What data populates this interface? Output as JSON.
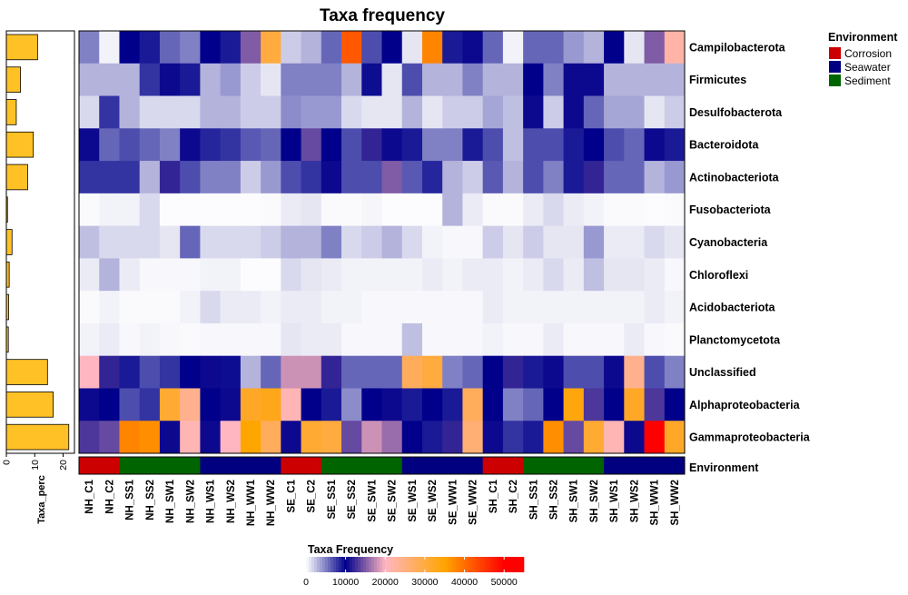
{
  "colors": {
    "corrosion": "#CC0000",
    "seawater": "#000080",
    "sediment": "#006400",
    "bar_fill": "#FFC125",
    "heat_scale": [
      "#FFFFFF",
      "#00008B",
      "#FFB6C1",
      "#FFA500",
      "#FF0000"
    ]
  },
  "chart_data": {
    "type": "heatmap",
    "title": "Taxa frequency",
    "rows": [
      "Campilobacterota",
      "Firmicutes",
      "Desulfobacterota",
      "Bacteroidota",
      "Actinobacteriota",
      "Fusobacteriota",
      "Cyanobacteria",
      "Chloroflexi",
      "Acidobacteriota",
      "Planctomycetota",
      "Unclassified",
      "Alphaproteobacteria",
      "Gammaproteobacteria"
    ],
    "columns": [
      "NH_C1",
      "NH_C2",
      "NH_SS1",
      "NH_SS2",
      "NH_SW1",
      "NH_SW2",
      "NH_WS1",
      "NH_WS2",
      "NH_WW1",
      "NH_WW2",
      "SE_C1",
      "SE_C2",
      "SE_SS1",
      "SE_SS2",
      "SE_SW1",
      "SE_SW2",
      "SE_WS1",
      "SE_WS2",
      "SE_WW1",
      "SE_WW2",
      "SH_C1",
      "SH_C2",
      "SH_SS1",
      "SH_SS2",
      "SH_SW1",
      "SH_SW2",
      "SH_WS1",
      "SH_WS2",
      "SH_WW1",
      "SH_WW2"
    ],
    "values": [
      [
        5000,
        500,
        10000,
        9000,
        6000,
        5000,
        10000,
        9000,
        15000,
        30000,
        2000,
        3000,
        6000,
        42000,
        7000,
        10000,
        1000,
        38000,
        9000,
        10500,
        6000,
        500,
        6000,
        6000,
        4000,
        3000,
        10000,
        1000,
        15000,
        22000
      ],
      [
        3000,
        3000,
        3000,
        8000,
        10500,
        9000,
        3000,
        4000,
        2000,
        1000,
        5000,
        5000,
        5000,
        3000,
        9500,
        1000,
        7000,
        3000,
        3000,
        5000,
        3000,
        3000,
        10000,
        5000,
        10500,
        10500,
        3000,
        3000,
        3000,
        3000
      ],
      [
        1500,
        8000,
        3000,
        1500,
        1500,
        1500,
        3000,
        3000,
        2000,
        2000,
        4500,
        4000,
        4000,
        1500,
        1000,
        1000,
        3000,
        1000,
        2000,
        2000,
        3500,
        2500,
        10500,
        2000,
        10500,
        6000,
        3500,
        3500,
        1000,
        2000
      ],
      [
        10500,
        6000,
        7000,
        6000,
        5000,
        10500,
        8500,
        8000,
        6500,
        6000,
        10000,
        14000,
        10000,
        7000,
        12000,
        10500,
        9000,
        5000,
        5000,
        9000,
        7000,
        2500,
        7000,
        7000,
        9000,
        10000,
        7000,
        6000,
        10500,
        9000
      ],
      [
        8000,
        8000,
        8000,
        3000,
        12000,
        7000,
        5000,
        5000,
        2000,
        4000,
        7000,
        8000,
        10500,
        7000,
        7000,
        15000,
        6500,
        8500,
        3000,
        2000,
        6500,
        3000,
        7000,
        5000,
        9000,
        12000,
        6000,
        6000,
        3000,
        4000
      ],
      [
        200,
        500,
        500,
        1500,
        100,
        100,
        100,
        100,
        100,
        200,
        800,
        1000,
        200,
        200,
        400,
        100,
        100,
        100,
        3000,
        800,
        200,
        200,
        800,
        1500,
        800,
        500,
        200,
        200,
        100,
        200
      ],
      [
        2500,
        1500,
        1500,
        1500,
        1000,
        6000,
        1500,
        1500,
        1500,
        2000,
        3000,
        3000,
        5000,
        1500,
        2000,
        3000,
        1500,
        500,
        300,
        300,
        2000,
        1000,
        2000,
        1000,
        1000,
        4000,
        800,
        800,
        1500,
        1000
      ],
      [
        800,
        3000,
        800,
        300,
        300,
        300,
        500,
        500,
        100,
        100,
        1500,
        1000,
        800,
        500,
        500,
        500,
        500,
        800,
        500,
        800,
        800,
        500,
        800,
        1500,
        800,
        2500,
        1000,
        1000,
        800,
        300
      ],
      [
        200,
        500,
        200,
        200,
        200,
        500,
        1500,
        800,
        800,
        500,
        800,
        800,
        500,
        500,
        300,
        300,
        300,
        300,
        300,
        300,
        800,
        500,
        500,
        500,
        500,
        500,
        500,
        500,
        800,
        500
      ],
      [
        500,
        800,
        300,
        500,
        300,
        200,
        300,
        300,
        300,
        300,
        1000,
        800,
        800,
        300,
        300,
        300,
        2500,
        300,
        300,
        300,
        500,
        300,
        300,
        800,
        300,
        300,
        300,
        800,
        300,
        200
      ],
      [
        20000,
        12000,
        9000,
        7000,
        8000,
        10000,
        10500,
        9500,
        3000,
        6000,
        18000,
        18000,
        12000,
        6000,
        6000,
        6000,
        28000,
        30000,
        5000,
        6000,
        10000,
        12000,
        9000,
        10500,
        7000,
        7000,
        10500,
        24000,
        7000,
        5000
      ],
      [
        10500,
        10000,
        7000,
        8000,
        31000,
        24000,
        10000,
        10500,
        32000,
        33000,
        21000,
        10000,
        9000,
        4500,
        10000,
        10500,
        9000,
        10000,
        9000,
        28000,
        10000,
        5000,
        6000,
        10000,
        34000,
        13000,
        10000,
        32000,
        13000,
        10000
      ],
      [
        13000,
        14000,
        38000,
        37000,
        10500,
        21000,
        10500,
        20000,
        35000,
        28000,
        10500,
        31000,
        30000,
        14000,
        18000,
        16000,
        10000,
        9000,
        12000,
        26000,
        10500,
        8000,
        9000,
        37000,
        14000,
        31000,
        21000,
        10500,
        50000,
        32000
      ]
    ],
    "taxa_perc": {
      "xlabel": "Taxa_perc",
      "ticks": [
        0,
        10,
        20
      ],
      "range": [
        0,
        24
      ],
      "values": [
        11,
        5,
        3.5,
        9.5,
        7.5,
        0.4,
        2,
        1,
        0.8,
        0.7,
        14.5,
        16.5,
        22
      ]
    },
    "environment": {
      "label": "Environment",
      "values": [
        "Corrosion",
        "Corrosion",
        "Sediment",
        "Sediment",
        "Sediment",
        "Sediment",
        "Seawater",
        "Seawater",
        "Seawater",
        "Seawater",
        "Corrosion",
        "Corrosion",
        "Sediment",
        "Sediment",
        "Sediment",
        "Sediment",
        "Seawater",
        "Seawater",
        "Seawater",
        "Seawater",
        "Corrosion",
        "Corrosion",
        "Sediment",
        "Sediment",
        "Sediment",
        "Sediment",
        "Seawater",
        "Seawater",
        "Seawater",
        "Seawater"
      ]
    },
    "legend_environment": {
      "title": "Environment",
      "items": [
        "Corrosion",
        "Seawater",
        "Sediment"
      ]
    },
    "legend_frequency": {
      "title": "Taxa Frequency",
      "ticks": [
        0,
        10000,
        20000,
        30000,
        40000,
        50000
      ],
      "range": [
        0,
        55000
      ]
    }
  }
}
